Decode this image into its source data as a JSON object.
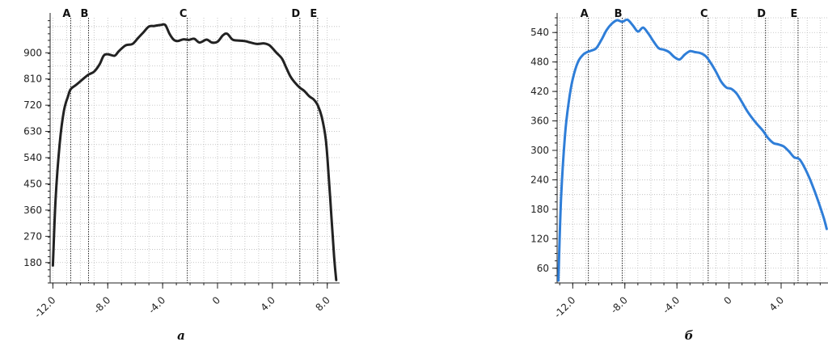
{
  "chart_data": [
    {
      "type": "line",
      "panel_label": "а",
      "color": "#222222",
      "xlim": [
        -12.2,
        8.9
      ],
      "ylim": [
        110,
        1020
      ],
      "x_ticks": [
        -12,
        -8,
        -4,
        0,
        4,
        8
      ],
      "x_tick_labels": [
        "-12.0",
        "-8.0",
        "-4.0",
        "0",
        "4.0",
        "8.0"
      ],
      "y_ticks": [
        180,
        270,
        360,
        450,
        540,
        630,
        720,
        810,
        900
      ],
      "y_tick_labels": [
        "180",
        "270",
        "360",
        "450",
        "540",
        "630",
        "720",
        "810",
        "900"
      ],
      "grid": true,
      "markers": [
        {
          "label": "A",
          "x": -10.7
        },
        {
          "label": "B",
          "x": -9.4
        },
        {
          "label": "C",
          "x": -2.2
        },
        {
          "label": "D",
          "x": 6.0
        },
        {
          "label": "E",
          "x": 7.3
        }
      ],
      "x": [
        -12.0,
        -11.8,
        -11.5,
        -11.2,
        -10.9,
        -10.7,
        -10.3,
        -9.8,
        -9.4,
        -9.0,
        -8.6,
        -8.3,
        -8.0,
        -7.5,
        -7.2,
        -6.7,
        -6.2,
        -5.8,
        -5.4,
        -5.0,
        -4.6,
        -4.1,
        -3.8,
        -3.5,
        -3.2,
        -2.9,
        -2.5,
        -2.1,
        -1.7,
        -1.3,
        -0.8,
        -0.4,
        0.0,
        0.4,
        0.7,
        1.1,
        1.5,
        2.0,
        2.4,
        2.9,
        3.4,
        3.8,
        4.3,
        4.7,
        5.0,
        5.3,
        5.6,
        6.0,
        6.3,
        6.7,
        7.0,
        7.3,
        7.6,
        7.9,
        8.1,
        8.3,
        8.5,
        8.65
      ],
      "y": [
        170,
        400,
        590,
        700,
        750,
        775,
        790,
        810,
        825,
        835,
        860,
        890,
        895,
        890,
        905,
        925,
        930,
        950,
        970,
        990,
        992,
        996,
        995,
        965,
        945,
        940,
        946,
        944,
        948,
        935,
        945,
        935,
        938,
        960,
        965,
        945,
        942,
        940,
        935,
        930,
        932,
        925,
        900,
        880,
        850,
        820,
        800,
        780,
        770,
        750,
        740,
        720,
        680,
        600,
        480,
        340,
        200,
        120
      ]
    },
    {
      "type": "line",
      "panel_label": "б",
      "color": "#2f7ed8",
      "xlim": [
        -13.2,
        7.6
      ],
      "ylim": [
        30,
        570
      ],
      "x_ticks": [
        -12,
        -8,
        -4,
        0,
        4
      ],
      "x_tick_labels": [
        "-12.0",
        "-8.0",
        "-4.0",
        "0",
        "4.0"
      ],
      "y_ticks": [
        60,
        120,
        180,
        240,
        300,
        360,
        420,
        480,
        540
      ],
      "y_tick_labels": [
        "60",
        "120",
        "180",
        "240",
        "300",
        "360",
        "420",
        "480",
        "540"
      ],
      "grid": true,
      "markers": [
        {
          "label": "A",
          "x": -10.8
        },
        {
          "label": "B",
          "x": -8.2
        },
        {
          "label": "C",
          "x": -1.6
        },
        {
          "label": "D",
          "x": 2.8
        },
        {
          "label": "E",
          "x": 5.3
        }
      ],
      "x": [
        -13.1,
        -12.9,
        -12.6,
        -12.3,
        -12.0,
        -11.6,
        -11.2,
        -10.9,
        -10.6,
        -10.2,
        -9.8,
        -9.4,
        -9.0,
        -8.6,
        -8.2,
        -7.8,
        -7.4,
        -7.0,
        -6.6,
        -6.2,
        -5.8,
        -5.4,
        -5.0,
        -4.6,
        -4.2,
        -3.8,
        -3.4,
        -3.0,
        -2.6,
        -2.2,
        -1.8,
        -1.4,
        -1.0,
        -0.6,
        -0.2,
        0.2,
        0.6,
        1.0,
        1.4,
        1.8,
        2.2,
        2.6,
        3.0,
        3.4,
        3.8,
        4.2,
        4.6,
        5.0,
        5.4,
        5.8,
        6.2,
        6.6,
        7.0,
        7.3,
        7.5
      ],
      "y": [
        35,
        200,
        330,
        400,
        445,
        480,
        495,
        500,
        503,
        508,
        525,
        545,
        558,
        565,
        562,
        566,
        555,
        542,
        550,
        538,
        522,
        508,
        505,
        500,
        490,
        485,
        495,
        502,
        500,
        498,
        492,
        478,
        460,
        440,
        428,
        425,
        415,
        398,
        380,
        365,
        352,
        340,
        325,
        315,
        312,
        308,
        298,
        286,
        282,
        265,
        242,
        215,
        185,
        160,
        140
      ]
    }
  ]
}
